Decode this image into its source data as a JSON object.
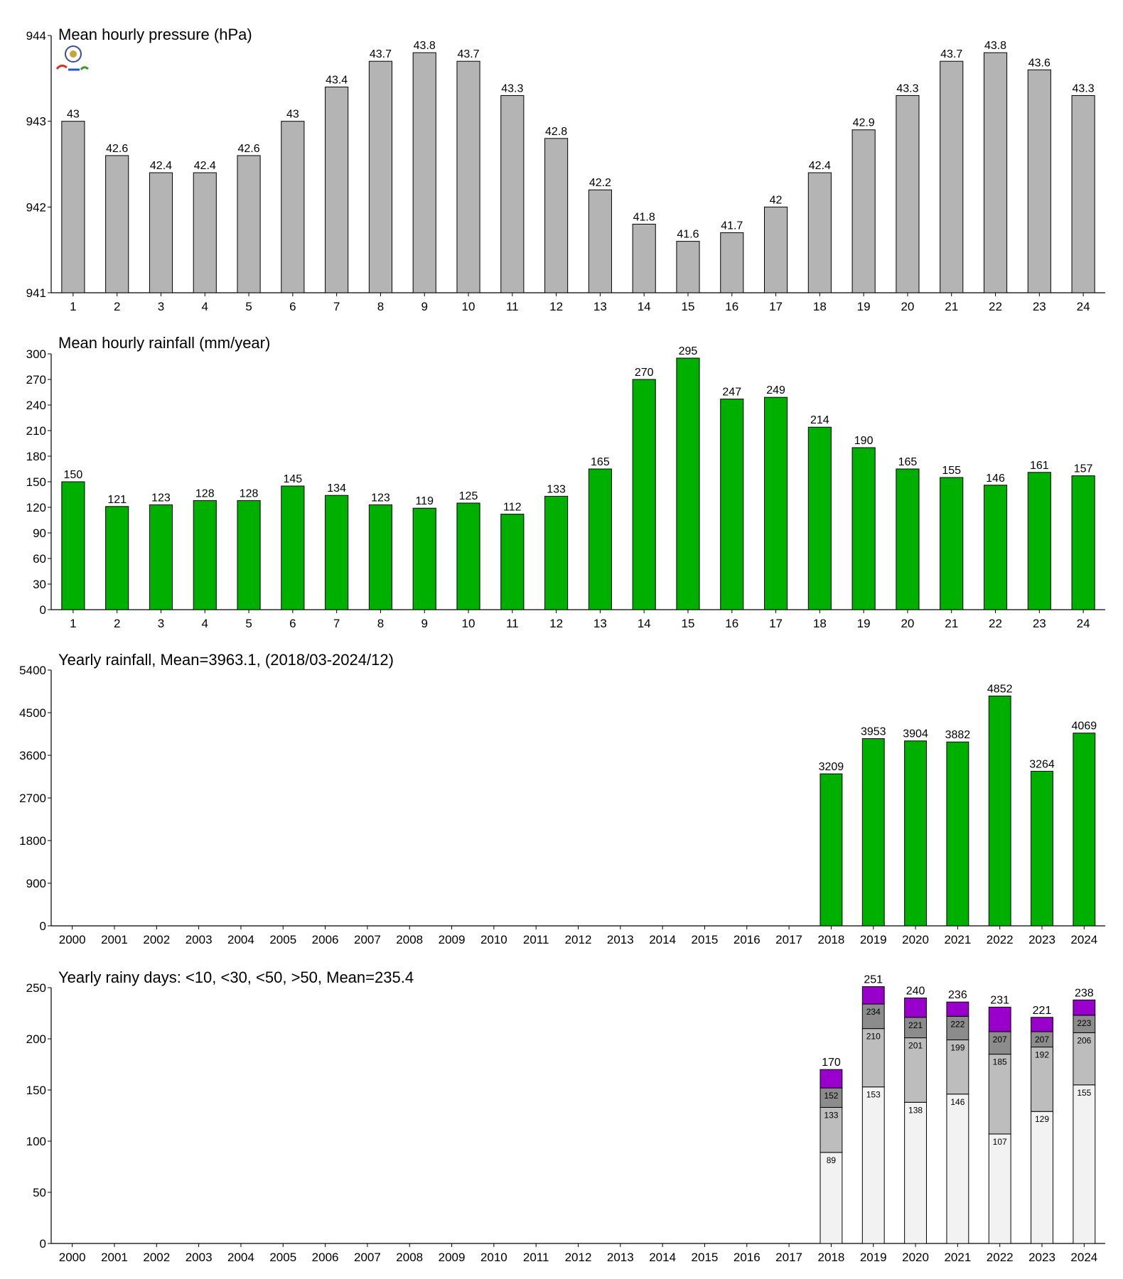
{
  "charts": [
    {
      "type": "bar",
      "title": "Mean hourly pressure (hPa)",
      "categories": [
        "1",
        "2",
        "3",
        "4",
        "5",
        "6",
        "7",
        "8",
        "9",
        "10",
        "11",
        "12",
        "13",
        "14",
        "15",
        "16",
        "17",
        "18",
        "19",
        "20",
        "21",
        "22",
        "23",
        "24"
      ],
      "values": [
        943.0,
        942.6,
        942.4,
        942.4,
        942.6,
        943.0,
        943.4,
        943.7,
        943.8,
        943.7,
        943.3,
        942.8,
        942.2,
        941.8,
        941.6,
        941.7,
        942.0,
        942.4,
        942.9,
        943.3,
        943.7,
        943.8,
        943.6,
        943.3
      ],
      "value_labels": [
        "43",
        "42.6",
        "42.4",
        "42.4",
        "42.6",
        "43",
        "43.4",
        "43.7",
        "43.8",
        "43.7",
        "43.3",
        "42.8",
        "42.2",
        "41.8",
        "41.6",
        "41.7",
        "42",
        "42.4",
        "42.9",
        "43.3",
        "43.7",
        "43.8",
        "43.6",
        "43.3"
      ],
      "ylim": [
        941,
        944
      ],
      "yticks": [
        941,
        942,
        943,
        944
      ],
      "color": "#b4b4b4"
    },
    {
      "type": "bar",
      "title": "Mean hourly rainfall (mm/year)",
      "categories": [
        "1",
        "2",
        "3",
        "4",
        "5",
        "6",
        "7",
        "8",
        "9",
        "10",
        "11",
        "12",
        "13",
        "14",
        "15",
        "16",
        "17",
        "18",
        "19",
        "20",
        "21",
        "22",
        "23",
        "24"
      ],
      "values": [
        150,
        121,
        123,
        128,
        128,
        145,
        134,
        123,
        119,
        125,
        112,
        133,
        165,
        270,
        295,
        247,
        249,
        214,
        190,
        165,
        155,
        146,
        161,
        157
      ],
      "value_labels": [
        "150",
        "121",
        "123",
        "128",
        "128",
        "145",
        "134",
        "123",
        "119",
        "125",
        "112",
        "133",
        "165",
        "270",
        "295",
        "247",
        "249",
        "214",
        "190",
        "165",
        "155",
        "146",
        "161",
        "157"
      ],
      "ylim": [
        0,
        300
      ],
      "yticks": [
        0,
        30,
        60,
        90,
        120,
        150,
        180,
        210,
        240,
        270,
        300
      ],
      "color": "#00b000"
    },
    {
      "type": "bar",
      "title": "Yearly rainfall, Mean=3963.1, (2018/03-2024/12)",
      "categories": [
        "2000",
        "2001",
        "2002",
        "2003",
        "2004",
        "2005",
        "2006",
        "2007",
        "2008",
        "2009",
        "2010",
        "2011",
        "2012",
        "2013",
        "2014",
        "2015",
        "2016",
        "2017",
        "2018",
        "2019",
        "2020",
        "2021",
        "2022",
        "2023",
        "2024"
      ],
      "values": [
        null,
        null,
        null,
        null,
        null,
        null,
        null,
        null,
        null,
        null,
        null,
        null,
        null,
        null,
        null,
        null,
        null,
        null,
        3209,
        3953,
        3904,
        3882,
        4852,
        3264,
        4069
      ],
      "value_labels": [
        "",
        "",
        "",
        "",
        "",
        "",
        "",
        "",
        "",
        "",
        "",
        "",
        "",
        "",
        "",
        "",
        "",
        "",
        "3209",
        "3953",
        "3904",
        "3882",
        "4852",
        "3264",
        "4069"
      ],
      "ylim": [
        0,
        5400
      ],
      "yticks": [
        0,
        900,
        1800,
        2700,
        3600,
        4500,
        5400
      ],
      "color": "#00b000"
    },
    {
      "type": "stacked_bar",
      "title": "Yearly rainy days: <10, <30, <50, >50, Mean=235.4",
      "categories": [
        "2000",
        "2001",
        "2002",
        "2003",
        "2004",
        "2005",
        "2006",
        "2007",
        "2008",
        "2009",
        "2010",
        "2011",
        "2012",
        "2013",
        "2014",
        "2015",
        "2016",
        "2017",
        "2018",
        "2019",
        "2020",
        "2021",
        "2022",
        "2023",
        "2024"
      ],
      "stacks": [
        {
          "cat": "2018",
          "cum": [
            89,
            133,
            152,
            170
          ],
          "labels": [
            "89",
            "133",
            "152"
          ],
          "total_label": "170"
        },
        {
          "cat": "2019",
          "cum": [
            153,
            210,
            234,
            251
          ],
          "labels": [
            "153",
            "210",
            "234"
          ],
          "total_label": "251"
        },
        {
          "cat": "2020",
          "cum": [
            138,
            201,
            221,
            240
          ],
          "labels": [
            "138",
            "201",
            "221"
          ],
          "total_label": "240"
        },
        {
          "cat": "2021",
          "cum": [
            146,
            199,
            222,
            236
          ],
          "labels": [
            "146",
            "199",
            "222"
          ],
          "total_label": "236"
        },
        {
          "cat": "2022",
          "cum": [
            107,
            185,
            207,
            231
          ],
          "labels": [
            "107",
            "185",
            "207"
          ],
          "total_label": "231"
        },
        {
          "cat": "2023",
          "cum": [
            129,
            192,
            207,
            221
          ],
          "labels": [
            "129",
            "192",
            "207"
          ],
          "total_label": "221"
        },
        {
          "cat": "2024",
          "cum": [
            155,
            206,
            223,
            238
          ],
          "labels": [
            "155",
            "206",
            "223"
          ],
          "total_label": "238"
        }
      ],
      "segment_colors": [
        "#f2f2f2",
        "#bdbdbd",
        "#8c8c8c",
        "#9900cc"
      ],
      "ylim": [
        0,
        250
      ],
      "yticks": [
        0,
        50,
        100,
        150,
        200,
        250
      ]
    }
  ]
}
